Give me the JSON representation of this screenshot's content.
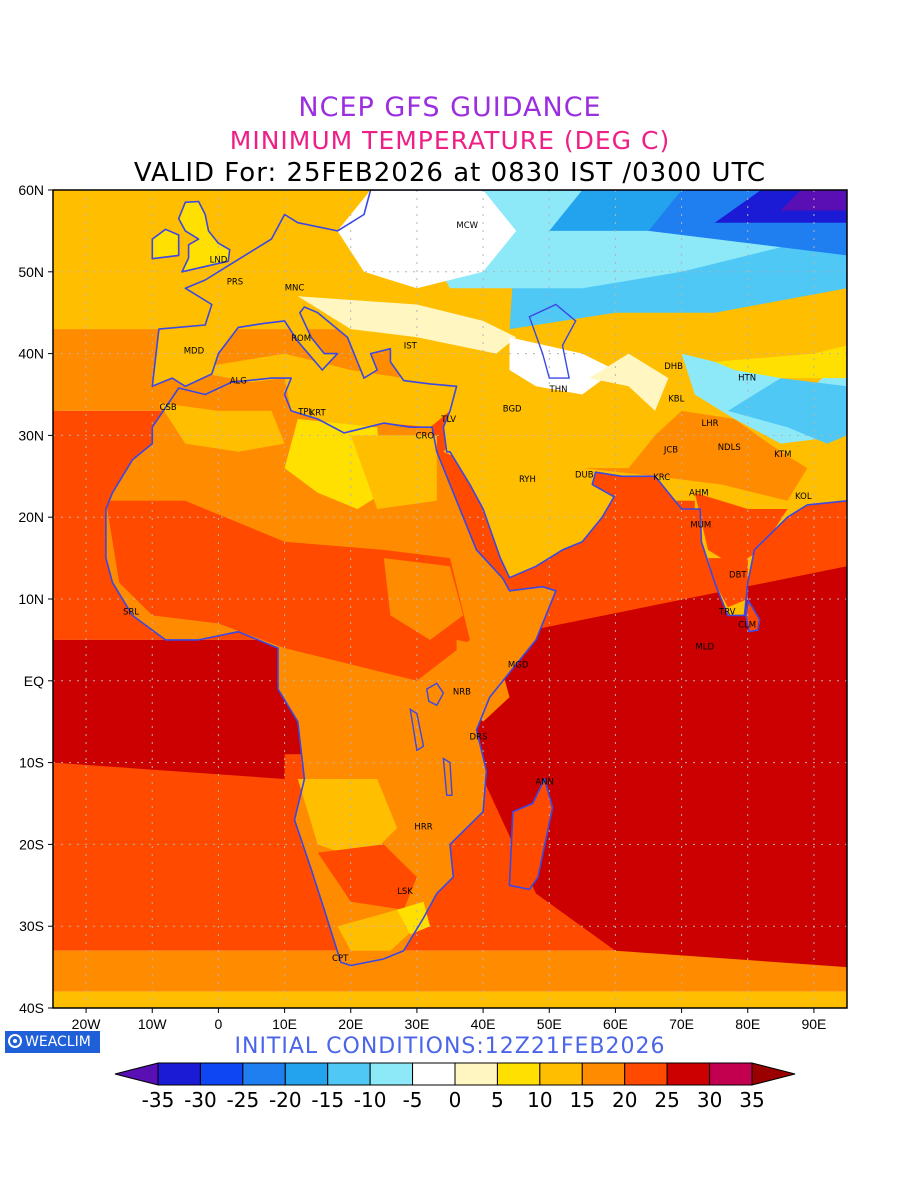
{
  "titles": {
    "line1": "NCEP GFS GUIDANCE",
    "line2": "MINIMUM TEMPERATURE (DEG C)",
    "line3": "VALID For: 25FEB2026 at 0830 IST /0300 UTC"
  },
  "initial_conditions": "INITIAL CONDITIONS:12Z21FEB2026",
  "branding": {
    "label": "WEACLIM",
    "icon": "globe-icon"
  },
  "map": {
    "lon_range": [
      -25,
      95
    ],
    "lat_range": [
      -40,
      60
    ],
    "lat_labels": [
      "60N",
      "50N",
      "40N",
      "30N",
      "20N",
      "10N",
      "EQ",
      "10S",
      "20S",
      "30S",
      "40S"
    ],
    "lon_labels": [
      "20W",
      "10W",
      "0",
      "10E",
      "20E",
      "30E",
      "40E",
      "50E",
      "60E",
      "70E",
      "80E",
      "90E"
    ],
    "cities": [
      {
        "name": "LND",
        "lon": 0.0,
        "lat": 51.5
      },
      {
        "name": "PRS",
        "lon": 2.5,
        "lat": 48.8
      },
      {
        "name": "MNC",
        "lon": 11.5,
        "lat": 48.1
      },
      {
        "name": "MCW",
        "lon": 37.6,
        "lat": 55.7
      },
      {
        "name": "MDD",
        "lon": -3.7,
        "lat": 40.4
      },
      {
        "name": "ROM",
        "lon": 12.5,
        "lat": 41.9
      },
      {
        "name": "IST",
        "lon": 29.0,
        "lat": 41.0
      },
      {
        "name": "ALG",
        "lon": 3.0,
        "lat": 36.7
      },
      {
        "name": "CSB",
        "lon": -7.6,
        "lat": 33.5
      },
      {
        "name": "TPL",
        "lon": 13.2,
        "lat": 32.9
      },
      {
        "name": "KRT",
        "lon": 15.0,
        "lat": 32.8
      },
      {
        "name": "CRO",
        "lon": 31.2,
        "lat": 30.0
      },
      {
        "name": "TLV",
        "lon": 34.8,
        "lat": 32.0
      },
      {
        "name": "BGD",
        "lon": 44.4,
        "lat": 33.3
      },
      {
        "name": "THN",
        "lon": 51.4,
        "lat": 35.7
      },
      {
        "name": "DHB",
        "lon": 68.8,
        "lat": 38.5
      },
      {
        "name": "HTN",
        "lon": 79.9,
        "lat": 37.1
      },
      {
        "name": "KBL",
        "lon": 69.2,
        "lat": 34.5
      },
      {
        "name": "LHR",
        "lon": 74.3,
        "lat": 31.5
      },
      {
        "name": "JCB",
        "lon": 68.4,
        "lat": 28.3
      },
      {
        "name": "NDLS",
        "lon": 77.2,
        "lat": 28.6
      },
      {
        "name": "KTM",
        "lon": 85.3,
        "lat": 27.7
      },
      {
        "name": "RYH",
        "lon": 46.7,
        "lat": 24.7
      },
      {
        "name": "DUB",
        "lon": 55.3,
        "lat": 25.2
      },
      {
        "name": "KRC",
        "lon": 67.0,
        "lat": 24.9
      },
      {
        "name": "AHM",
        "lon": 72.6,
        "lat": 23.0
      },
      {
        "name": "KOL",
        "lon": 88.4,
        "lat": 22.6
      },
      {
        "name": "MUM",
        "lon": 72.9,
        "lat": 19.1
      },
      {
        "name": "DBT",
        "lon": 78.5,
        "lat": 13.0
      },
      {
        "name": "TRV",
        "lon": 76.9,
        "lat": 8.5
      },
      {
        "name": "CLM",
        "lon": 79.9,
        "lat": 6.9
      },
      {
        "name": "MLD",
        "lon": 73.5,
        "lat": 4.2
      },
      {
        "name": "SRL",
        "lon": -13.2,
        "lat": 8.5
      },
      {
        "name": "MGD",
        "lon": 45.3,
        "lat": 2.0
      },
      {
        "name": "NRB",
        "lon": 36.8,
        "lat": -1.3
      },
      {
        "name": "DRS",
        "lon": 39.3,
        "lat": -6.8
      },
      {
        "name": "ANN",
        "lon": 49.3,
        "lat": -12.3
      },
      {
        "name": "HRR",
        "lon": 31.0,
        "lat": -17.8
      },
      {
        "name": "LSK",
        "lon": 28.2,
        "lat": -25.7
      },
      {
        "name": "CPT",
        "lon": 18.4,
        "lat": -33.9
      }
    ]
  },
  "colorbar": {
    "labels": [
      "-35",
      "-30",
      "-25",
      "-20",
      "-15",
      "-10",
      "-5",
      "0",
      "5",
      "10",
      "15",
      "20",
      "25",
      "30",
      "35"
    ],
    "colors": [
      "#5a0fb4",
      "#1b1bd6",
      "#0d46f2",
      "#1f7ff0",
      "#23a3ee",
      "#4fc8f5",
      "#8de9f8",
      "#ffffff",
      "#fff6c2",
      "#ffe000",
      "#ffbe00",
      "#ff8c00",
      "#ff4a00",
      "#cc0000",
      "#c2004f",
      "#9b0000"
    ]
  },
  "palette": {
    "coast": "#3b48e6",
    "grid": "#b4b4b4",
    "ocean_warm": "#cc0000",
    "ocean_mid": "#ff4a00",
    "land_hot": "#ff8c00"
  }
}
